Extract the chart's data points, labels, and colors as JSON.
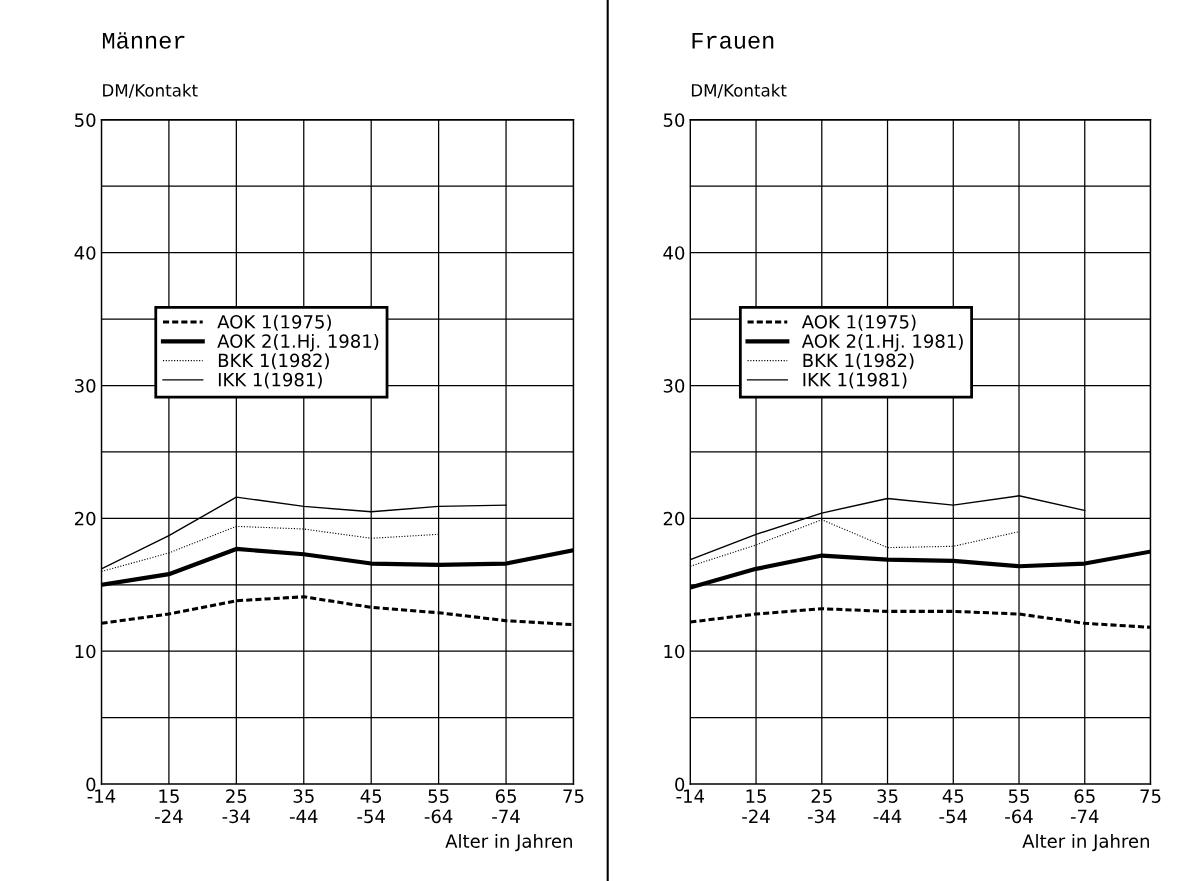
{
  "chart_data": [
    {
      "type": "line",
      "title": "Männer",
      "ylabel": "DM/Kontakt",
      "xlabel": "Alter in Jahren",
      "categories": [
        "-14",
        "15\n-24",
        "25\n-34",
        "35\n-44",
        "45\n-54",
        "55\n-64",
        "65\n-74",
        "75"
      ],
      "ylim": [
        0,
        50
      ],
      "yticks": [
        0,
        {
          "value": 5,
          "label": null
        },
        10,
        {
          "value": 15,
          "label": null
        },
        20,
        {
          "value": 25,
          "label": null
        },
        30,
        {
          "value": 35,
          "label": null
        },
        40,
        {
          "value": 45,
          "label": null
        },
        50
      ],
      "grid": true,
      "legend": "center",
      "marker": "none",
      "series": [
        {
          "name": "AOK 1(1975)",
          "color": "#000000",
          "line_style": "dashed",
          "values": [
            12.1,
            12.8,
            13.8,
            14.1,
            13.3,
            12.9,
            12.3,
            12.0
          ]
        },
        {
          "name": "AOK 2(1.Hj. 1981)",
          "color": "#000000",
          "line_style": "solid",
          "values": [
            15.0,
            15.8,
            17.7,
            17.3,
            16.6,
            16.5,
            16.6,
            17.6
          ]
        },
        {
          "name": "BKK 1(1982)",
          "color": "#000000",
          "line_style": "dotted",
          "values": [
            16.0,
            17.4,
            19.4,
            19.2,
            18.5,
            18.8,
            null,
            null
          ]
        },
        {
          "name": "IKK 1(1981)",
          "color": "#000000",
          "line_style": "solid",
          "values": [
            16.2,
            18.7,
            21.6,
            20.9,
            20.5,
            20.9,
            21.0,
            null
          ]
        }
      ]
    },
    {
      "type": "line",
      "title": "Frauen",
      "ylabel": "DM/Kontakt",
      "xlabel": "Alter in Jahren",
      "categories": [
        "-14",
        "15\n-24",
        "25\n-34",
        "35\n-44",
        "45\n-54",
        "55\n-64",
        "65\n-74",
        "75"
      ],
      "ylim": [
        0,
        50
      ],
      "yticks": [
        0,
        {
          "value": 5,
          "label": null
        },
        10,
        {
          "value": 15,
          "label": null
        },
        20,
        {
          "value": 25,
          "label": null
        },
        30,
        {
          "value": 35,
          "label": null
        },
        40,
        {
          "value": 45,
          "label": null
        },
        50
      ],
      "grid": true,
      "legend": "center",
      "marker": "none",
      "series": [
        {
          "name": "AOK 1(1975)",
          "color": "#000000",
          "line_style": "dashed",
          "values": [
            12.2,
            12.8,
            13.2,
            13.0,
            13.0,
            12.8,
            12.1,
            11.8
          ]
        },
        {
          "name": "AOK 2(1.Hj. 1981)",
          "color": "#000000",
          "line_style": "solid",
          "values": [
            14.8,
            16.2,
            17.2,
            16.9,
            16.8,
            16.4,
            16.6,
            17.5
          ]
        },
        {
          "name": "BKK 1(1982)",
          "color": "#000000",
          "line_style": "dotted",
          "values": [
            16.4,
            18.0,
            19.9,
            17.8,
            17.9,
            19.0,
            null,
            null
          ]
        },
        {
          "name": "IKK 1(1981)",
          "color": "#000000",
          "line_style": "solid",
          "values": [
            16.9,
            18.8,
            20.4,
            21.5,
            21.0,
            21.7,
            20.6,
            null
          ]
        }
      ]
    }
  ]
}
